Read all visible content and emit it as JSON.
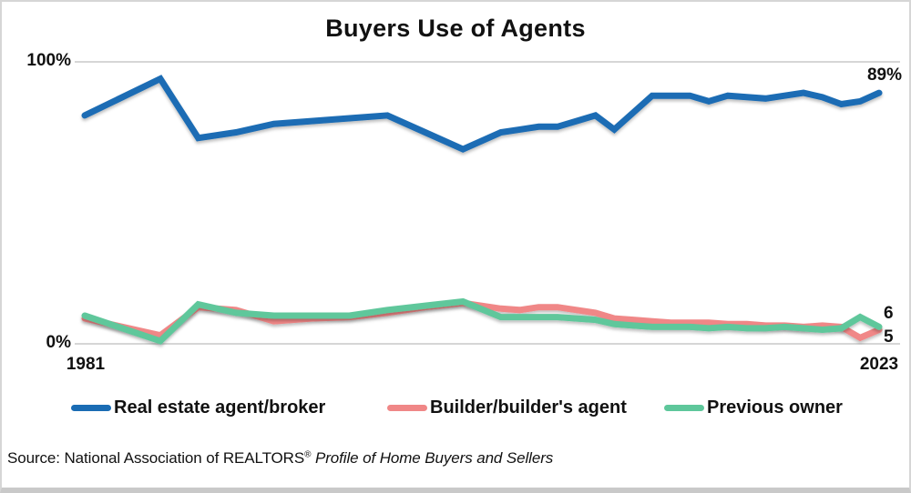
{
  "title": "Buyers Use of Agents",
  "axis": {
    "y_top_label": "100%",
    "y_bottom_label": "0%",
    "x_start_label": "1981",
    "x_end_label": "2023"
  },
  "annotations": {
    "agent_end": "89%",
    "previous_owner_end": "6",
    "builder_end": "5"
  },
  "legend": [
    {
      "label": "Real estate agent/broker",
      "color": "#1a6cb4"
    },
    {
      "label": "Builder/builder's agent",
      "color": "#f08787"
    },
    {
      "label": "Previous owner",
      "color": "#5ec79b"
    }
  ],
  "source": {
    "prefix": "Source: National Association of REALTORS",
    "reg_mark": "®",
    "italic": " Profile of Home Buyers and Sellers"
  },
  "chart_data": {
    "type": "line",
    "x": [
      1981,
      1985,
      1987,
      1989,
      1991,
      1993,
      1995,
      1997,
      1999,
      2001,
      2003,
      2004,
      2005,
      2006,
      2007,
      2008,
      2009,
      2010,
      2011,
      2012,
      2013,
      2014,
      2015,
      2016,
      2017,
      2018,
      2019,
      2020,
      2021,
      2022,
      2023
    ],
    "series": [
      {
        "name": "Real estate agent/broker",
        "color": "#1a6cb4",
        "values": [
          81,
          94,
          73,
          75,
          78,
          79,
          80,
          81,
          75,
          69,
          75,
          76,
          77,
          77,
          79,
          81,
          76,
          82,
          88,
          88,
          88,
          86,
          88,
          87.5,
          87,
          88,
          89,
          87.5,
          85,
          86,
          89
        ]
      },
      {
        "name": "Builder/builder's agent",
        "color": "#f08787",
        "end_marker": "diamond-down",
        "values": [
          9,
          3,
          13,
          12,
          8,
          9,
          9.5,
          11,
          13,
          14.5,
          12.5,
          12,
          13,
          13,
          12,
          11,
          9,
          8.5,
          8,
          7.5,
          7.5,
          7.5,
          7,
          7,
          6.5,
          6.5,
          6,
          6.5,
          6,
          6,
          5
        ]
      },
      {
        "name": "Previous owner",
        "color": "#5ec79b",
        "end_marker": "diamond-up",
        "values": [
          10,
          1,
          14,
          11,
          10,
          10,
          10,
          12,
          13.5,
          15,
          9.5,
          9.5,
          9.5,
          9.5,
          9,
          8.5,
          7,
          6.5,
          6,
          6,
          6,
          5.5,
          6,
          5.5,
          5.5,
          6,
          5.5,
          5,
          5.5,
          5,
          6
        ]
      }
    ],
    "xlim": [
      1981,
      2023
    ],
    "ylim": [
      0,
      100
    ],
    "gridlines_y": [
      0,
      100
    ],
    "grid": "horizontal-only",
    "legend_position": "bottom"
  }
}
